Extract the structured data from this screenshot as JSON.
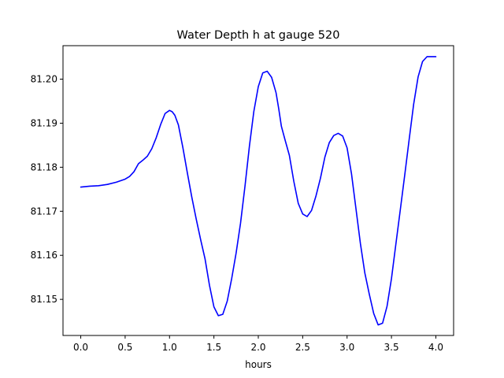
{
  "chart_data": {
    "type": "line",
    "title": "Water Depth h at gauge 520",
    "xlabel": "hours",
    "ylabel": "",
    "xlim": [
      -0.2,
      4.2
    ],
    "ylim": [
      81.1418,
      81.2076
    ],
    "x_ticks": [
      0.0,
      0.5,
      1.0,
      1.5,
      2.0,
      2.5,
      3.0,
      3.5,
      4.0
    ],
    "x_tick_labels": [
      "0.0",
      "0.5",
      "1.0",
      "1.5",
      "2.0",
      "2.5",
      "3.0",
      "3.5",
      "4.0"
    ],
    "y_ticks": [
      81.15,
      81.16,
      81.17,
      81.18,
      81.19,
      81.2
    ],
    "y_tick_labels": [
      "81.15",
      "81.16",
      "81.17",
      "81.18",
      "81.19",
      "81.20"
    ],
    "grid": false,
    "series": [
      {
        "color": "#0000ff",
        "x": [
          0.0,
          0.1,
          0.2,
          0.3,
          0.4,
          0.5,
          0.55,
          0.6,
          0.65,
          0.7,
          0.75,
          0.8,
          0.85,
          0.9,
          0.95,
          1.0,
          1.03,
          1.06,
          1.1,
          1.15,
          1.2,
          1.25,
          1.3,
          1.35,
          1.4,
          1.45,
          1.5,
          1.55,
          1.6,
          1.65,
          1.7,
          1.75,
          1.8,
          1.85,
          1.9,
          1.95,
          2.0,
          2.05,
          2.1,
          2.15,
          2.2,
          2.23,
          2.26,
          2.3,
          2.35,
          2.4,
          2.45,
          2.5,
          2.55,
          2.6,
          2.65,
          2.7,
          2.75,
          2.8,
          2.85,
          2.9,
          2.95,
          3.0,
          3.05,
          3.1,
          3.15,
          3.2,
          3.25,
          3.3,
          3.35,
          3.4,
          3.45,
          3.5,
          3.55,
          3.6,
          3.65,
          3.7,
          3.75,
          3.8,
          3.85,
          3.9,
          3.95,
          4.0
        ],
        "y": [
          81.1755,
          81.1757,
          81.1758,
          81.1761,
          81.1766,
          81.1773,
          81.1779,
          81.179,
          81.1808,
          81.1816,
          81.1825,
          81.1842,
          81.1867,
          81.1897,
          81.1922,
          81.1929,
          81.1926,
          81.1918,
          81.1896,
          81.1845,
          81.1788,
          81.1733,
          81.1683,
          81.1636,
          81.1592,
          81.1532,
          81.1483,
          81.1463,
          81.1466,
          81.1496,
          81.1547,
          81.1605,
          81.1673,
          81.1757,
          81.1848,
          81.1927,
          81.1983,
          81.2014,
          81.2018,
          81.2004,
          81.1969,
          81.1933,
          81.1893,
          81.1863,
          81.1827,
          81.1768,
          81.1718,
          81.1694,
          81.1688,
          81.1702,
          81.1735,
          81.1775,
          81.1823,
          81.1856,
          81.1872,
          81.1877,
          81.1871,
          81.1844,
          81.1785,
          81.1706,
          81.1627,
          81.156,
          81.1512,
          81.1468,
          81.1442,
          81.1446,
          81.1484,
          81.1547,
          81.1626,
          81.1704,
          81.1783,
          81.1864,
          81.1943,
          81.2005,
          81.204,
          81.2051,
          81.2051,
          81.2051
        ]
      }
    ]
  }
}
